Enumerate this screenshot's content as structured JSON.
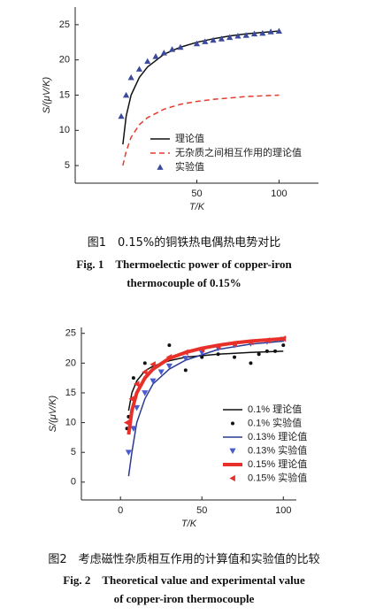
{
  "chart_data": [
    {
      "type": "line",
      "ylabel": "S/(μV/K)",
      "xlabel": "T/K",
      "xlim": [
        -24,
        124
      ],
      "xticks": [
        50,
        100
      ],
      "ylim": [
        2.5,
        27.5
      ],
      "yticks": [
        5,
        10,
        15,
        20,
        25
      ],
      "series": [
        {
          "name": "理论值",
          "color": "#111111",
          "kind": "line",
          "x": [
            5,
            7,
            10,
            15,
            20,
            30,
            40,
            50,
            60,
            70,
            80,
            90,
            100
          ],
          "values": [
            8,
            12,
            15,
            17.5,
            19,
            20.8,
            21.8,
            22.5,
            23,
            23.4,
            23.7,
            23.9,
            24.1
          ]
        },
        {
          "name": "无杂质之间相互作用的理论值",
          "color": "#e8392e",
          "kind": "dashed",
          "x": [
            5,
            7,
            10,
            15,
            20,
            30,
            40,
            50,
            60,
            70,
            80,
            90,
            100
          ],
          "values": [
            5,
            7,
            9,
            10.8,
            11.8,
            13,
            13.7,
            14.1,
            14.4,
            14.6,
            14.8,
            14.9,
            15
          ]
        },
        {
          "name": "实验值",
          "color": "#3b4a9c",
          "kind": "scatter",
          "marker": "triangle",
          "x": [
            4,
            7,
            10,
            15,
            20,
            25,
            30,
            35,
            40,
            50,
            55,
            60,
            65,
            70,
            75,
            80,
            85,
            90,
            95,
            100
          ],
          "values": [
            12,
            15,
            17.5,
            18.7,
            19.8,
            20.5,
            21,
            21.5,
            21.8,
            22.3,
            22.6,
            22.8,
            23,
            23.2,
            23.4,
            23.5,
            23.7,
            23.8,
            24,
            24.1
          ]
        }
      ]
    },
    {
      "type": "line",
      "ylabel": "S/(μV/K)",
      "xlabel": "T/K",
      "xlim": [
        -24,
        108
      ],
      "xticks": [
        0,
        50,
        100
      ],
      "ylim": [
        -3,
        26
      ],
      "yticks": [
        0,
        5,
        10,
        15,
        20,
        25
      ],
      "series": [
        {
          "name": "0.1% 理论值",
          "color": "#111111",
          "kind": "line",
          "x": [
            5,
            7,
            10,
            15,
            20,
            30,
            40,
            60,
            80,
            100
          ],
          "values": [
            12,
            15,
            17,
            18.7,
            19.5,
            20.4,
            21,
            21.5,
            21.8,
            22
          ]
        },
        {
          "name": "0.1% 实验值",
          "color": "#111111",
          "kind": "scatter",
          "marker": "dot",
          "x": [
            4,
            5,
            8,
            15,
            20,
            30,
            40,
            50,
            60,
            70,
            80,
            85,
            90,
            95,
            100
          ],
          "values": [
            9,
            11,
            17.5,
            20,
            19,
            23,
            18.8,
            21,
            21.5,
            21,
            20,
            21.5,
            22,
            22,
            23
          ]
        },
        {
          "name": "0.13% 理论值",
          "color": "#2b3a8f",
          "kind": "line",
          "x": [
            5,
            7,
            10,
            15,
            20,
            30,
            40,
            60,
            80,
            100
          ],
          "values": [
            1,
            5,
            10,
            14,
            16.5,
            19,
            20.5,
            22.3,
            23.2,
            23.7
          ]
        },
        {
          "name": "0.13% 实验值",
          "color": "#4a5bd0",
          "kind": "scatter",
          "marker": "triangle-down",
          "x": [
            5,
            8,
            10,
            15,
            20,
            25,
            30,
            40,
            50,
            60,
            70,
            80,
            90,
            100
          ],
          "values": [
            5,
            9,
            12.5,
            15,
            17,
            18.5,
            19.5,
            20.8,
            21.8,
            22.5,
            23,
            23.3,
            23.6,
            24
          ]
        },
        {
          "name": "0.15% 理论值",
          "color": "#e8302a",
          "kind": "thick",
          "x": [
            5,
            7,
            10,
            15,
            20,
            30,
            40,
            50,
            60,
            70,
            80,
            100
          ],
          "values": [
            8,
            12,
            15,
            17.5,
            19,
            20.8,
            21.8,
            22.5,
            23,
            23.4,
            23.7,
            24.1
          ]
        },
        {
          "name": "0.15% 实验值",
          "color": "#e8302a",
          "kind": "scatter",
          "marker": "triangle-left",
          "x": [
            4,
            7,
            10,
            15,
            20,
            30,
            40,
            50,
            60,
            70,
            80,
            90,
            100
          ],
          "values": [
            10,
            14,
            16.5,
            18.5,
            19.8,
            21,
            21.8,
            22.3,
            22.8,
            23.2,
            23.5,
            23.8,
            24.1
          ]
        }
      ]
    }
  ],
  "captions": [
    {
      "cn": "图1　0.15%的铜铁热电偶热电势对比",
      "en": [
        "Fig. 1　Thermoelectic power of copper-iron",
        "thermocouple of 0.15%"
      ]
    },
    {
      "cn": "图2　考虑磁性杂质相互作用的计算值和实验值的比较",
      "en": [
        "Fig. 2　Theoretical value and experimental value",
        "of copper-iron thermocouple"
      ]
    }
  ]
}
